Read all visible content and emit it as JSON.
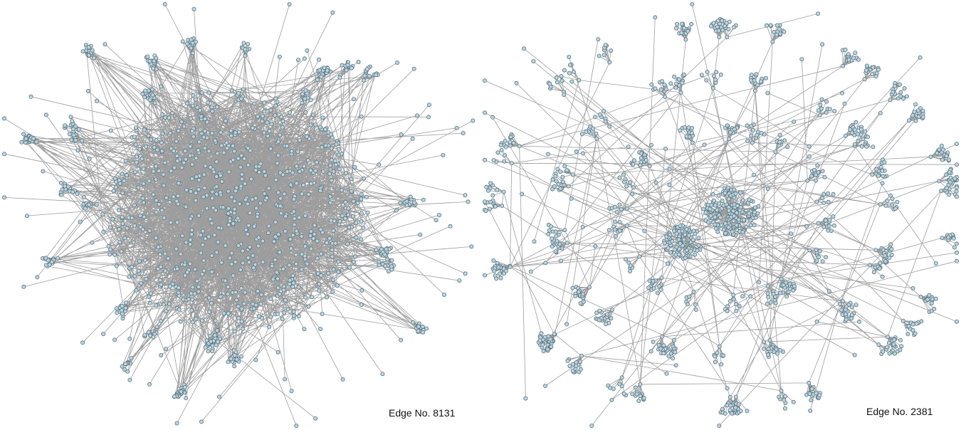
{
  "colors": {
    "edge": "#8c8c8c",
    "node_fill": "#bcd6e0",
    "node_stroke": "#5b7480",
    "background": "#ffffff"
  },
  "graphs": [
    {
      "id": "left",
      "caption": "Edge No. 8131",
      "style": "dense-core"
    },
    {
      "id": "right",
      "caption": "Edge No. 2381",
      "style": "hub-and-spoke"
    }
  ]
}
